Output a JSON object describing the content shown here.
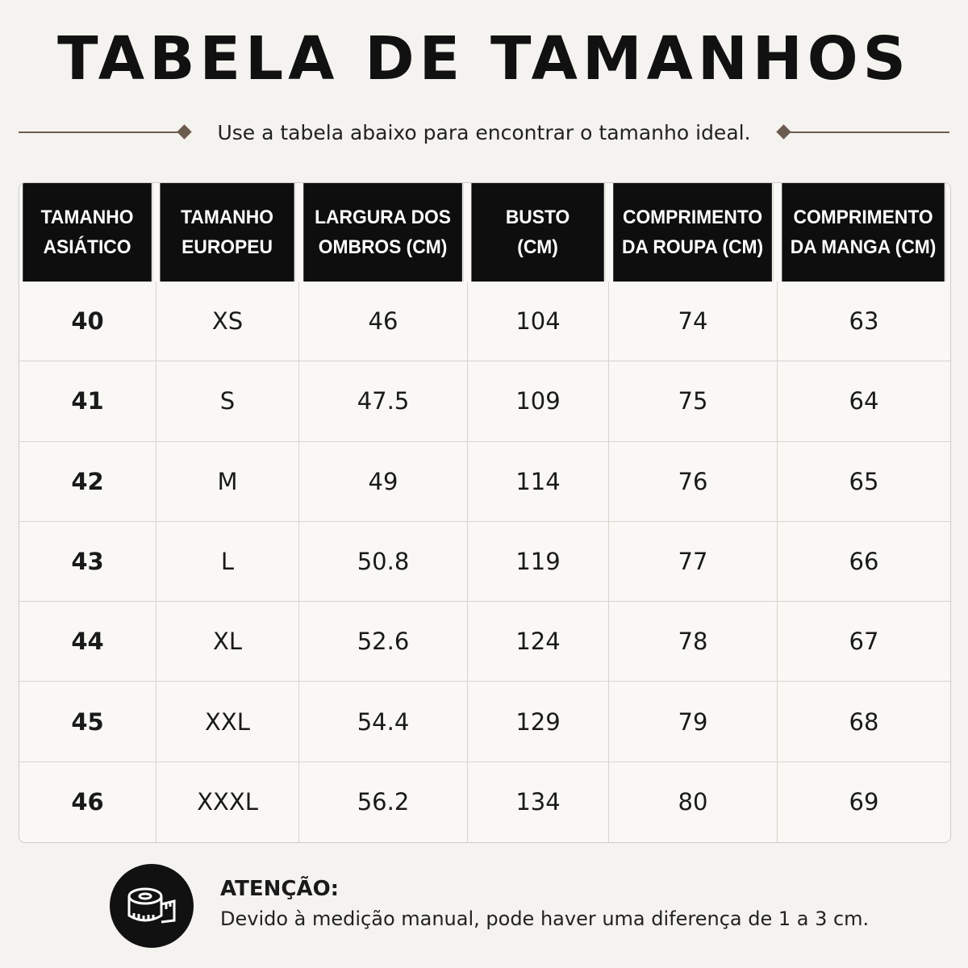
{
  "header": {
    "title": "TABELA DE TAMANHOS",
    "subtitle": "Use a tabela abaixo para encontrar o tamanho ideal."
  },
  "table": {
    "columns": [
      [
        "TAMANHO",
        "ASIÁTICO"
      ],
      [
        "TAMANHO",
        "EUROPEU"
      ],
      [
        "LARGURA DOS",
        "OMBROS (CM)"
      ],
      [
        "BUSTO",
        "(CM)"
      ],
      [
        "COMPRIMENTO",
        "DA ROUPA (CM)"
      ],
      [
        "COMPRIMENTO",
        "DA MANGA (CM)"
      ]
    ],
    "rows": [
      [
        "40",
        "XS",
        "46",
        "104",
        "74",
        "63"
      ],
      [
        "41",
        "S",
        "47.5",
        "109",
        "75",
        "64"
      ],
      [
        "42",
        "M",
        "49",
        "114",
        "76",
        "65"
      ],
      [
        "43",
        "L",
        "50.8",
        "119",
        "77",
        "66"
      ],
      [
        "44",
        "XL",
        "52.6",
        "124",
        "78",
        "67"
      ],
      [
        "45",
        "XXL",
        "54.4",
        "129",
        "79",
        "68"
      ],
      [
        "46",
        "XXXL",
        "56.2",
        "134",
        "80",
        "69"
      ]
    ]
  },
  "note": {
    "heading": "ATENÇÃO:",
    "text": "Devido à medição manual, pode haver uma diferença de 1 a 3 cm."
  }
}
